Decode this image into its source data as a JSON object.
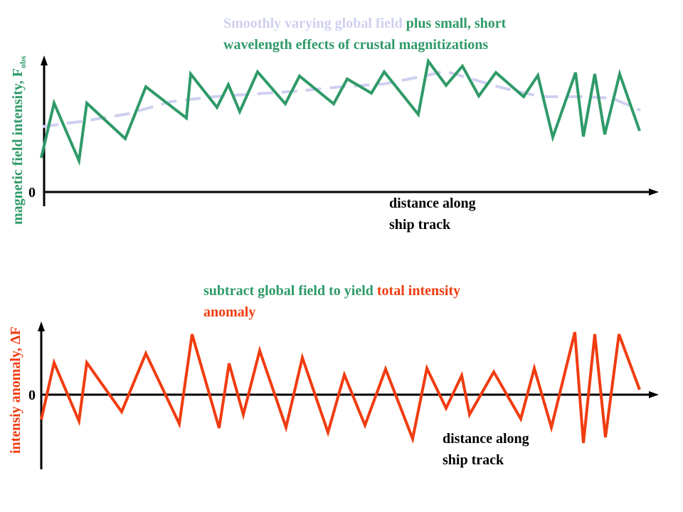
{
  "colors": {
    "green": "#2f9a68",
    "lavender": "#cfd0f0",
    "red": "#f03c10",
    "axis": "#000000"
  },
  "top_panel": {
    "caption_part1": "Smoothly varying global field",
    "caption_part2": " plus small, short",
    "caption_line2": "wavelength effects of crustal magnitizations",
    "ylabel_main": "magnetic field intensity, F",
    "ylabel_sub": "obs",
    "zero_label": "0",
    "xlabel_line1": "distance along",
    "xlabel_line2": "ship track"
  },
  "bottom_panel": {
    "caption_part1": "subtract global field to yield ",
    "caption_part2": "total intensity",
    "caption_line2": "anomaly",
    "ylabel": "intensiy anomaly, ΔF",
    "zero_label": "0",
    "xlabel_line1": "distance along",
    "xlabel_line2": "ship track"
  }
}
